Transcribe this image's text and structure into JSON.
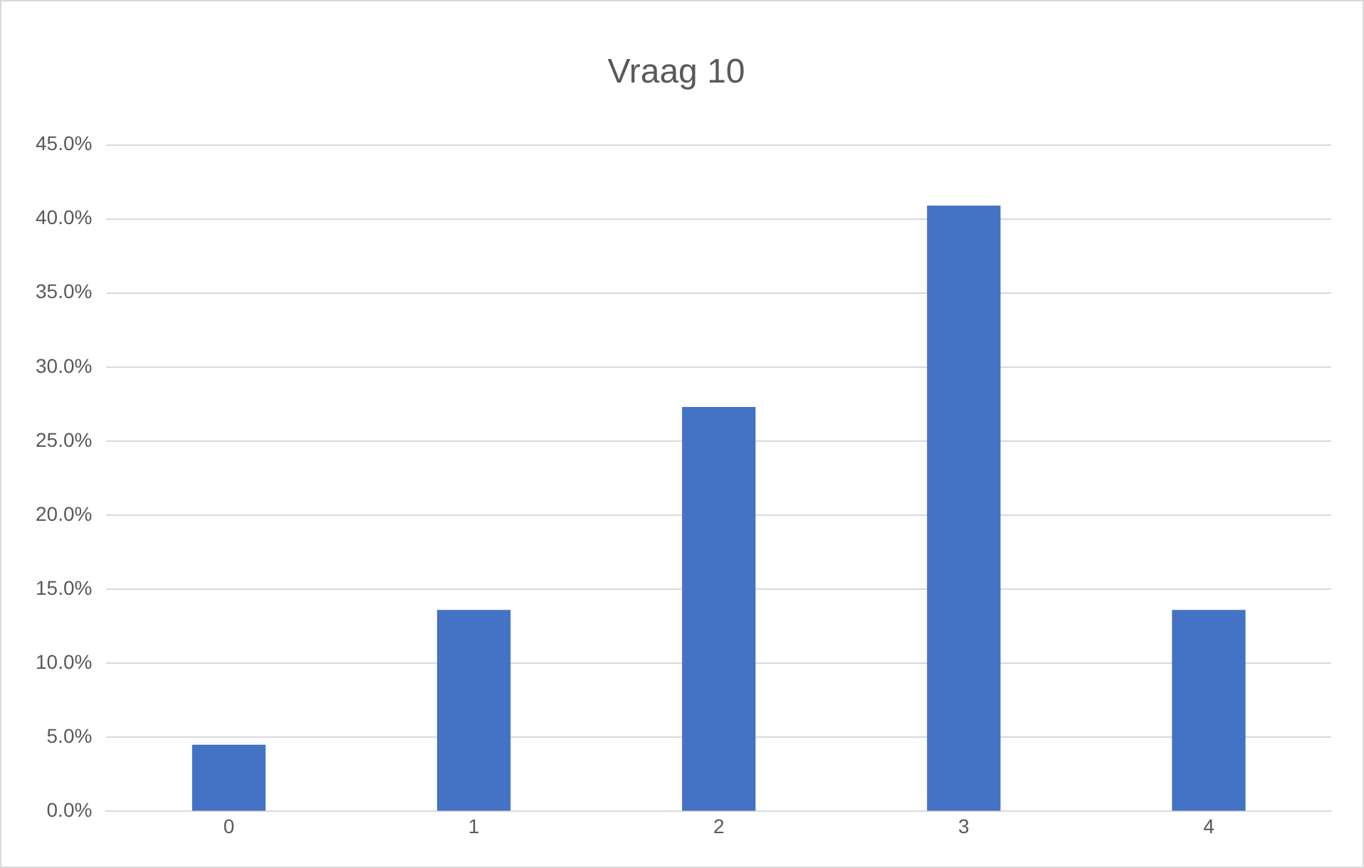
{
  "chart_data": {
    "type": "bar",
    "title": "Vraag 10",
    "categories": [
      "0",
      "1",
      "2",
      "3",
      "4"
    ],
    "values": [
      4.5,
      13.6,
      27.3,
      40.9,
      13.6
    ],
    "color": "#4472c4",
    "ylim": [
      0,
      45
    ],
    "yticks": [
      {
        "value": 0,
        "label": "0.0%"
      },
      {
        "value": 5,
        "label": "5.0%"
      },
      {
        "value": 10,
        "label": "10.0%"
      },
      {
        "value": 15,
        "label": "15.0%"
      },
      {
        "value": 20,
        "label": "20.0%"
      },
      {
        "value": 25,
        "label": "25.0%"
      },
      {
        "value": 30,
        "label": "30.0%"
      },
      {
        "value": 35,
        "label": "35.0%"
      },
      {
        "value": 40,
        "label": "40.0%"
      },
      {
        "value": 45,
        "label": "45.0%"
      }
    ],
    "grid": "y",
    "legend": false
  }
}
